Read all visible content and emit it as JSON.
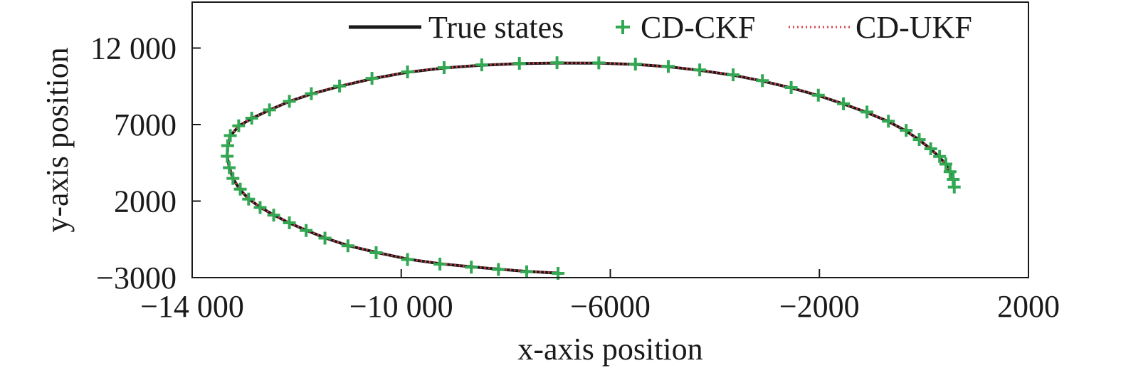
{
  "chart_data": {
    "type": "line",
    "xlabel": "x-axis position",
    "ylabel": "y-axis position",
    "xlim": [
      -14000,
      2000
    ],
    "ylim": [
      -3000,
      15000
    ],
    "x_ticks": [
      {
        "value": -14000,
        "label": "−14 000"
      },
      {
        "value": -10000,
        "label": "−10 000"
      },
      {
        "value": -6000,
        "label": "−6000"
      },
      {
        "value": -2000,
        "label": "−2000"
      },
      {
        "value": 2000,
        "label": "2000"
      }
    ],
    "y_ticks": [
      {
        "value": -3000,
        "label": "−3000"
      },
      {
        "value": 2000,
        "label": "2000"
      },
      {
        "value": 7000,
        "label": "7000"
      },
      {
        "value": 12000,
        "label": "12 000"
      }
    ],
    "legend_position": "top-right",
    "series": [
      {
        "name": "True states",
        "style": "solid",
        "color": "#1a1a1a",
        "x": [
          -7000,
          -7580,
          -8120,
          -8640,
          -9240,
          -9860,
          -10480,
          -11020,
          -11460,
          -11820,
          -12160,
          -12440,
          -12700,
          -12920,
          -13100,
          -13220,
          -13290,
          -13330,
          -13320,
          -13270,
          -13110,
          -12860,
          -12520,
          -12150,
          -11720,
          -11180,
          -10550,
          -9880,
          -9170,
          -8460,
          -7740,
          -7010,
          -6200,
          -5500,
          -4890,
          -4300,
          -3650,
          -3100,
          -2540,
          -2020,
          -1540,
          -1100,
          -680,
          -350,
          -90,
          130,
          290,
          420,
          500,
          560,
          580
        ],
        "y": [
          -2700,
          -2600,
          -2450,
          -2300,
          -2100,
          -1800,
          -1350,
          -900,
          -400,
          100,
          600,
          1100,
          1600,
          2150,
          2800,
          3500,
          4200,
          4950,
          5600,
          6250,
          6900,
          7400,
          7950,
          8500,
          9000,
          9500,
          10000,
          10420,
          10700,
          10880,
          10980,
          11020,
          11010,
          10930,
          10780,
          10550,
          10230,
          9850,
          9400,
          8900,
          8350,
          7800,
          7200,
          6600,
          6000,
          5400,
          4900,
          4400,
          3900,
          3400,
          2900
        ]
      },
      {
        "name": "CD-CKF",
        "style": "markers",
        "color": "#33a853",
        "x": [
          -7000,
          -7600,
          -8140,
          -8660,
          -9260,
          -9880,
          -10480,
          -11020,
          -11460,
          -11820,
          -12140,
          -12440,
          -12700,
          -12920,
          -13080,
          -13220,
          -13290,
          -13330,
          -13320,
          -13270,
          -13110,
          -12860,
          -12520,
          -12140,
          -11720,
          -11180,
          -10560,
          -9880,
          -9180,
          -8460,
          -7740,
          -7020,
          -6220,
          -5520,
          -4890,
          -4290,
          -3650,
          -3090,
          -2540,
          -2020,
          -1540,
          -1090,
          -680,
          -340,
          -90,
          130,
          300,
          420,
          500,
          560,
          580
        ],
        "y": [
          -2720,
          -2620,
          -2470,
          -2320,
          -2120,
          -1820,
          -1370,
          -920,
          -420,
          80,
          580,
          1080,
          1580,
          2130,
          2780,
          3480,
          4180,
          4930,
          5620,
          6280,
          6920,
          7420,
          7960,
          8520,
          9020,
          9520,
          10020,
          10440,
          10720,
          10900,
          11000,
          11040,
          11030,
          10950,
          10800,
          10570,
          10250,
          9870,
          9420,
          8920,
          8360,
          7820,
          7220,
          6620,
          6020,
          5420,
          4920,
          4420,
          3920,
          3420,
          2920
        ]
      },
      {
        "name": "CD-UKF",
        "style": "dotted",
        "color": "#e0404a",
        "x": [
          -7000,
          -7580,
          -8120,
          -8640,
          -9240,
          -9860,
          -10480,
          -11020,
          -11460,
          -11820,
          -12160,
          -12440,
          -12700,
          -12920,
          -13100,
          -13220,
          -13290,
          -13330,
          -13320,
          -13270,
          -13110,
          -12860,
          -12520,
          -12150,
          -11720,
          -11180,
          -10550,
          -9880,
          -9170,
          -8460,
          -7740,
          -7010,
          -6200,
          -5500,
          -4890,
          -4300,
          -3650,
          -3100,
          -2540,
          -2020,
          -1540,
          -1100,
          -680,
          -350,
          -90,
          130,
          290,
          420,
          500,
          560,
          580
        ],
        "y": [
          -2690,
          -2590,
          -2440,
          -2290,
          -2090,
          -1790,
          -1340,
          -890,
          -390,
          110,
          610,
          1110,
          1610,
          2160,
          2810,
          3510,
          4210,
          4960,
          5610,
          6260,
          6910,
          7410,
          7960,
          8510,
          9010,
          9510,
          10010,
          10430,
          10710,
          10890,
          10990,
          11030,
          11020,
          10940,
          10790,
          10560,
          10240,
          9860,
          9410,
          8910,
          8360,
          7810,
          7210,
          6610,
          6010,
          5410,
          4910,
          4410,
          3910,
          3410,
          2910
        ]
      }
    ]
  }
}
